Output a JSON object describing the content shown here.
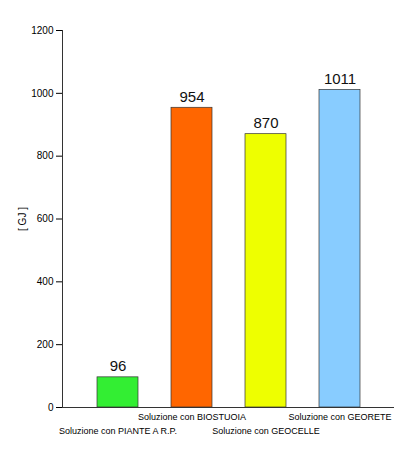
{
  "chart_data": {
    "type": "bar",
    "y_label": "[ GJ ]",
    "categories": [
      "Soluzione con PIANTE A R.P.",
      "Soluzione con BIOSTUOIA",
      "Soluzione con GEOCELLE",
      "Soluzione con GEORETE"
    ],
    "values": [
      96,
      954,
      870,
      1011
    ],
    "colors": [
      "#33ee33",
      "#ff6600",
      "#eeff00",
      "#88ccff"
    ],
    "ylim": [
      0,
      1200
    ],
    "yticks": [
      0,
      200,
      400,
      600,
      800,
      1000,
      1200
    ],
    "grid": false,
    "data_labels": true
  }
}
